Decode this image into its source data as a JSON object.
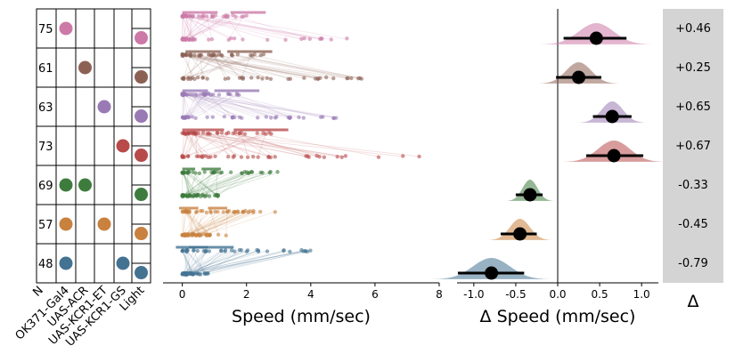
{
  "chart_data": [
    {
      "type": "table",
      "columns": [
        "N",
        "OK371-Gal4",
        "UAS-ACR",
        "UAS-KCR1-ET",
        "UAS-KCR1-GS",
        "Light"
      ],
      "rows": [
        {
          "n": "75",
          "color": "#cc79a7",
          "dots": [
            1,
            0,
            0,
            0
          ],
          "light": true
        },
        {
          "n": "61",
          "color": "#8c6154",
          "dots": [
            0,
            1,
            0,
            0
          ],
          "light": true
        },
        {
          "n": "63",
          "color": "#9a7ab5",
          "dots": [
            0,
            0,
            1,
            0
          ],
          "light": true
        },
        {
          "n": "73",
          "color": "#b84a4a",
          "dots": [
            0,
            0,
            0,
            1
          ],
          "light": true
        },
        {
          "n": "69",
          "color": "#3e7c3e",
          "dots": [
            1,
            1,
            0,
            0
          ],
          "light": true
        },
        {
          "n": "57",
          "color": "#c8813e",
          "dots": [
            1,
            0,
            1,
            0
          ],
          "light": true
        },
        {
          "n": "48",
          "color": "#447392",
          "dots": [
            1,
            0,
            0,
            1
          ],
          "light": true
        }
      ]
    },
    {
      "type": "scatter",
      "xlabel": "Speed (mm/sec)",
      "xlim": [
        -0.6,
        8
      ],
      "xticks": [
        "0",
        "2",
        "4",
        "6",
        "8"
      ],
      "series": [
        {
          "color": "#cc79a7",
          "off_max": 2.2,
          "on_max": 6.3,
          "bar_off": [
            0,
            1.1
          ],
          "bar_on": [
            1.5,
            2.6
          ]
        },
        {
          "color": "#8c6154",
          "off_max": 2.6,
          "on_max": 5.6,
          "bar_off": [
            0.1,
            1.2
          ],
          "bar_on": [
            1.4,
            2.8
          ]
        },
        {
          "color": "#9a7ab5",
          "off_max": 1.8,
          "on_max": 4.8,
          "bar_off": [
            0,
            0.8
          ],
          "bar_on": [
            1.0,
            2.4
          ]
        },
        {
          "color": "#b84a4a",
          "off_max": 3.0,
          "on_max": 7.6,
          "bar_off": [
            0,
            1.3
          ],
          "bar_on": [
            1.6,
            3.3
          ]
        },
        {
          "color": "#3e7c3e",
          "off_max": 3.3,
          "on_max": 1.2,
          "bar_off": [
            0,
            0.4
          ],
          "bar_on": [
            0.6,
            1.2
          ]
        },
        {
          "color": "#c8813e",
          "off_max": 2.9,
          "on_max": 1.4,
          "bar_off": [
            -0.1,
            0.5
          ],
          "bar_on": [
            0.8,
            1.4
          ]
        },
        {
          "color": "#447392",
          "off_max": 4.2,
          "on_max": 0.8,
          "bar_off": [
            0.2,
            1.6
          ],
          "bar_on": [
            -0.2,
            0.8
          ]
        }
      ]
    },
    {
      "type": "area",
      "xlabel": "Δ Speed (mm/sec)",
      "xlim": [
        -1.2,
        1.2
      ],
      "xticks": [
        "-1.0",
        "-0.5",
        "0.0",
        "0.5",
        "1.0"
      ],
      "estimates": [
        {
          "color": "#cc79a7",
          "mean": 0.46,
          "ci": [
            0.07,
            0.82
          ],
          "label": "+0.46"
        },
        {
          "color": "#8c6154",
          "mean": 0.25,
          "ci": [
            -0.02,
            0.52
          ],
          "label": "+0.25"
        },
        {
          "color": "#9a7ab5",
          "mean": 0.65,
          "ci": [
            0.42,
            0.88
          ],
          "label": "+0.65"
        },
        {
          "color": "#b84a4a",
          "mean": 0.67,
          "ci": [
            0.34,
            1.02
          ],
          "label": "+0.67"
        },
        {
          "color": "#3e7c3e",
          "mean": -0.33,
          "ci": [
            -0.5,
            -0.18
          ],
          "label": "-0.33"
        },
        {
          "color": "#c8813e",
          "mean": -0.45,
          "ci": [
            -0.68,
            -0.25
          ],
          "label": "-0.45"
        },
        {
          "color": "#447392",
          "mean": -0.79,
          "ci": [
            -1.19,
            -0.4
          ],
          "label": "-0.79"
        }
      ]
    }
  ],
  "delta_label": "Δ",
  "colors": {
    "panel_gray": "#d4d4d4",
    "axis": "#000000"
  }
}
